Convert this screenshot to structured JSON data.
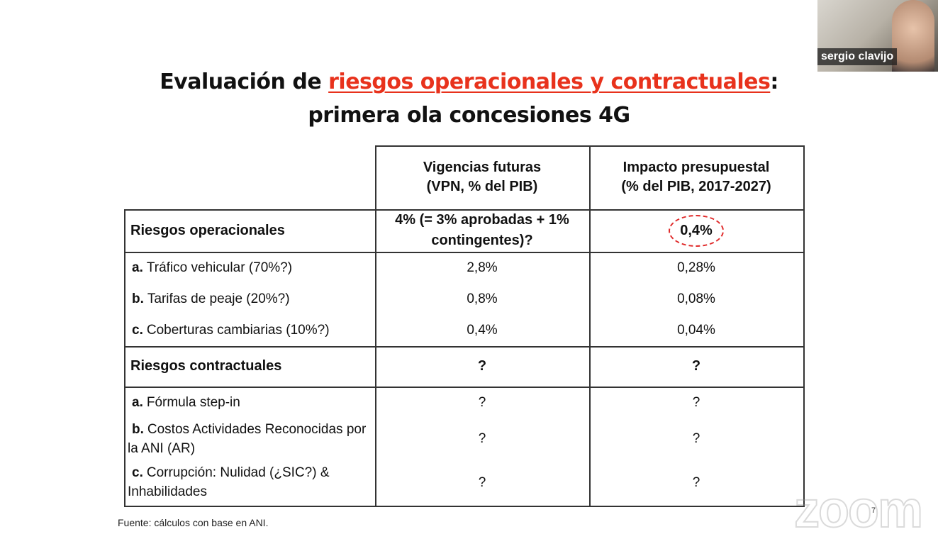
{
  "video": {
    "participant_name": "sergio clavijo"
  },
  "slide": {
    "title": {
      "prefix": "Evaluación de ",
      "highlight": "riesgos operacionales y contractuales",
      "suffix": ":",
      "line2": "primera ola concesiones 4G"
    },
    "table": {
      "header": [
        [
          "Vigencias futuras",
          "(VPN, % del PIB)"
        ],
        [
          "Impacto presupuestal",
          "(% del PIB, 2017-2027)"
        ]
      ],
      "sections": [
        {
          "title": "Riesgos operacionales",
          "values": [
            "4% (= 3% aprobadas + 1% contingentes)?",
            "0,4%"
          ],
          "items": [
            {
              "prefix": "a.",
              "label": "Tráfico vehicular (70%?)",
              "values": [
                "2,8%",
                "0,28%"
              ]
            },
            {
              "prefix": "b.",
              "label": "Tarifas de peaje (20%?)",
              "values": [
                "0,8%",
                "0,08%"
              ]
            },
            {
              "prefix": "c.",
              "label": "Coberturas cambiarias (10%?)",
              "values": [
                "0,4%",
                "0,04%"
              ]
            }
          ]
        },
        {
          "title": "Riesgos contractuales",
          "values": [
            "?",
            "?"
          ],
          "items": [
            {
              "prefix": "a.",
              "label": "Fórmula step-in",
              "values": [
                "?",
                "?"
              ]
            },
            {
              "prefix": "b.",
              "label": "Costos Actividades Reconocidas por la ANI (AR)",
              "values": [
                "?",
                "?"
              ]
            },
            {
              "prefix": "c.",
              "label": "Corrupción: Nulidad (¿SIC?) & Inhabilidades",
              "values": [
                "?",
                "?"
              ]
            }
          ]
        }
      ]
    },
    "source": "Fuente: cálculos con base en ANI.",
    "page_number": "7"
  },
  "watermark": "zoom"
}
